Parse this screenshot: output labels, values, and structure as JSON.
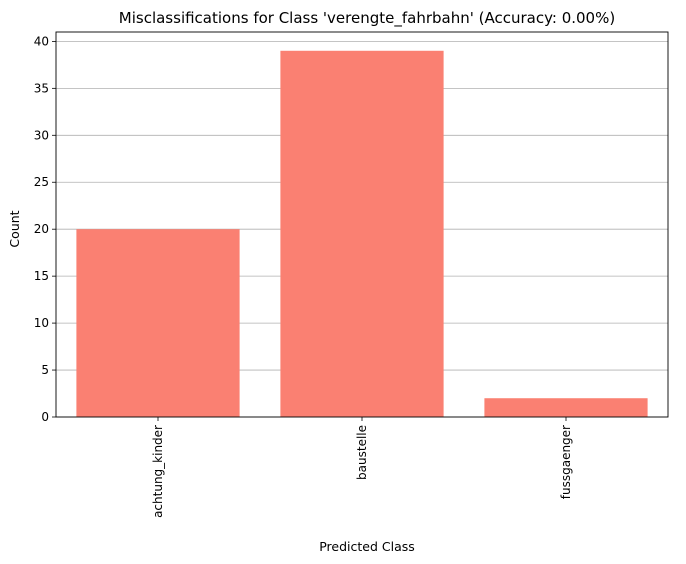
{
  "chart_data": {
    "type": "bar",
    "title": "Misclassifications for Class 'verengte_fahrbahn' (Accuracy: 0.00%)",
    "xlabel": "Predicted Class",
    "ylabel": "Count",
    "categories": [
      "achtung_kinder",
      "baustelle",
      "fussgaenger"
    ],
    "values": [
      20,
      39,
      2
    ],
    "ylim": [
      0,
      41
    ],
    "yticks": [
      0,
      5,
      10,
      15,
      20,
      25,
      30,
      35,
      40
    ],
    "x_tick_rotation": "vertical",
    "grid": "y-axis only",
    "legend": "none",
    "bar_color": "#fa8072"
  }
}
